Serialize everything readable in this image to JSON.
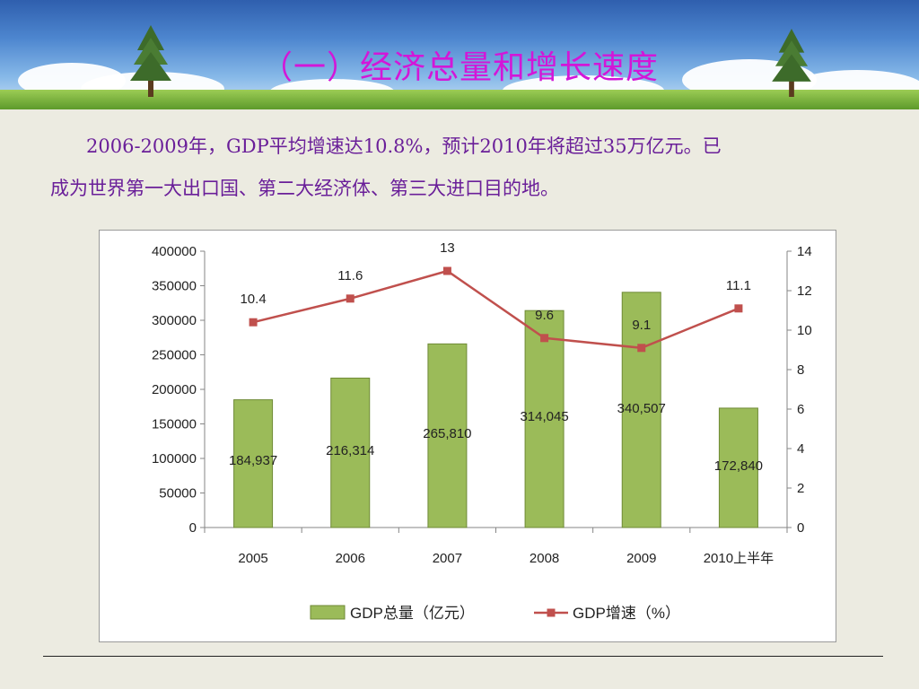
{
  "slide": {
    "title": "（一）经济总量和增长速度",
    "paragraph_line1": "2006-2009年，GDP平均增速达10.8%，预计2010年将超过35万亿元。已",
    "paragraph_line2": "成为世界第一大出口国、第二大经济体、第三大进口目的地。"
  },
  "colors": {
    "title": "#d316d8",
    "text": "#6a1f99",
    "bar_fill": "#9bbb59",
    "bar_stroke": "#6f8a36",
    "line": "#c0504d"
  },
  "chart_data": {
    "type": "bar",
    "categories": [
      "2005",
      "2006",
      "2007",
      "2008",
      "2009",
      "2010上半年"
    ],
    "series": [
      {
        "name": "GDP总量（亿元）",
        "type": "bar",
        "axis": "left",
        "values": [
          184937,
          216314,
          265810,
          314045,
          340507,
          172840
        ],
        "labels": [
          "184,937",
          "216,314",
          "265,810",
          "314,045",
          "340,507",
          "172,840"
        ]
      },
      {
        "name": "GDP增速（%）",
        "type": "line",
        "axis": "right",
        "values": [
          10.4,
          11.6,
          13,
          9.6,
          9.1,
          11.1
        ],
        "labels": [
          "10.4",
          "11.6",
          "13",
          "9.6",
          "9.1",
          "11.1"
        ]
      }
    ],
    "ylim_left": [
      0,
      400000
    ],
    "yticks_left": [
      "0",
      "50000",
      "100000",
      "150000",
      "200000",
      "250000",
      "300000",
      "350000",
      "400000"
    ],
    "ylim_right": [
      0,
      14
    ],
    "yticks_right": [
      "0",
      "2",
      "4",
      "6",
      "8",
      "10",
      "12",
      "14"
    ],
    "grid": false,
    "legend": "bottom"
  }
}
